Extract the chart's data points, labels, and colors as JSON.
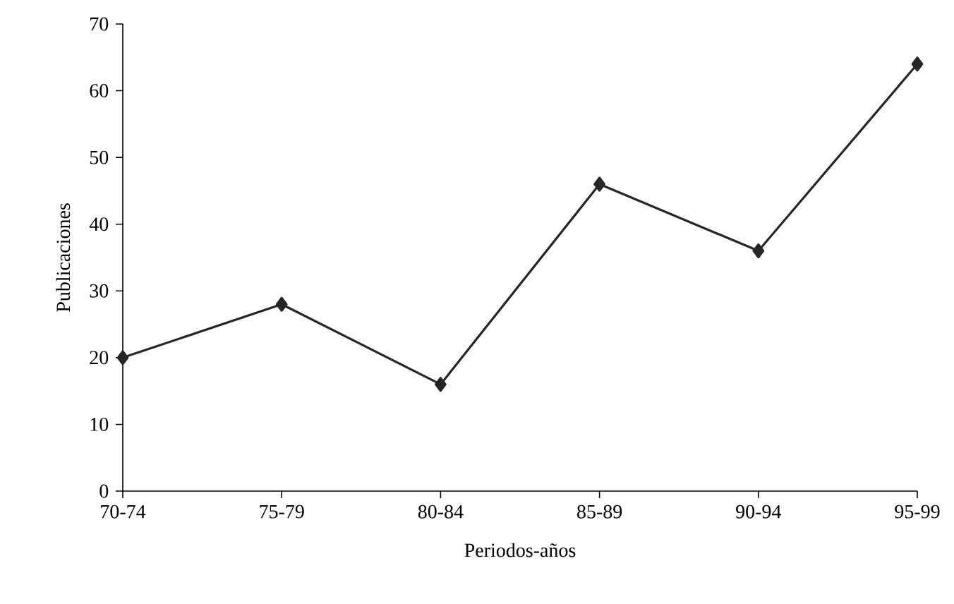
{
  "chart_data": {
    "type": "line",
    "xlabel": "Periodos-años",
    "ylabel": "Publicaciones",
    "categories": [
      "70-74",
      "75-79",
      "80-84",
      "85-89",
      "90-94",
      "95-99"
    ],
    "values": [
      20,
      28,
      16,
      46,
      36,
      64
    ],
    "color": "#262626",
    "marker": "diamond",
    "line_style": "solid",
    "ylim": [
      0,
      70
    ],
    "yticks": [
      0,
      10,
      20,
      30,
      40,
      50,
      60,
      70
    ]
  }
}
